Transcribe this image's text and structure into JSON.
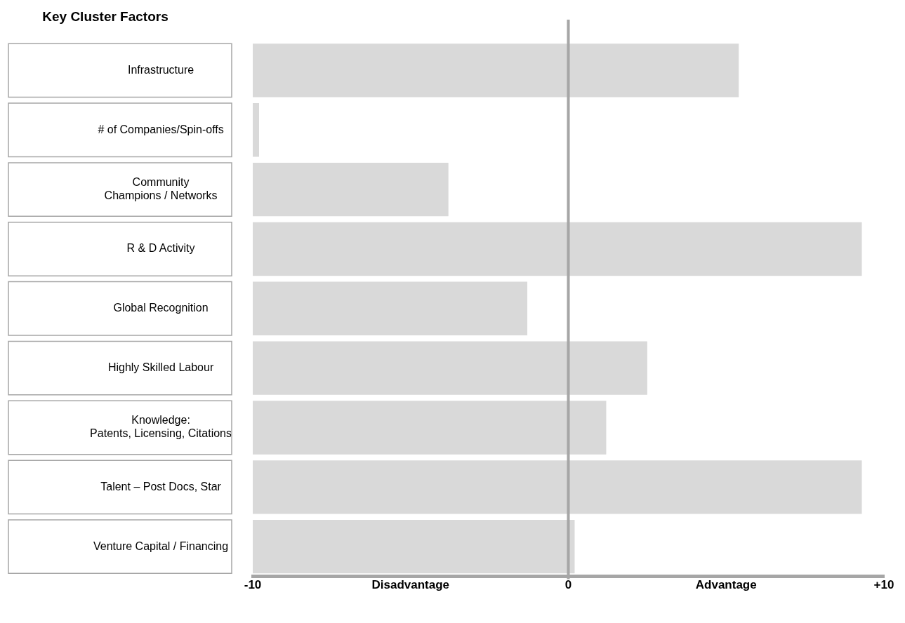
{
  "chart_data": {
    "type": "bar",
    "orientation": "horizontal",
    "title": "Key Cluster Factors",
    "categories": [
      "Infrastructure",
      "# of Companies/Spin-offs",
      "Community\nChampions / Networks",
      "R & D Activity",
      "Global Recognition",
      "Highly Skilled Labour",
      "Knowledge:\nPatents, Licensing, Citations",
      "Talent – Post Docs, Star",
      "Venture Capital / Financing"
    ],
    "base": [
      -10,
      -10,
      -10,
      -10,
      -10,
      -10,
      -10,
      -10,
      -10
    ],
    "values": [
      15.4,
      0.2,
      6.2,
      19.3,
      8.7,
      12.5,
      11.2,
      19.3,
      10.2
    ],
    "color": "#d9d9d9",
    "xlim": [
      -10,
      10
    ],
    "xticks": [
      {
        "value": -10,
        "label": "-10"
      },
      {
        "value": -5,
        "label": "Disadvantage"
      },
      {
        "value": 0,
        "label": "0"
      },
      {
        "value": 5,
        "label": "Advantage"
      },
      {
        "value": 10,
        "label": "+10"
      }
    ],
    "ref_lines": [
      {
        "axis": "x",
        "value": 0,
        "color": "#a6a6a6"
      }
    ],
    "grid": false,
    "legend": false
  }
}
